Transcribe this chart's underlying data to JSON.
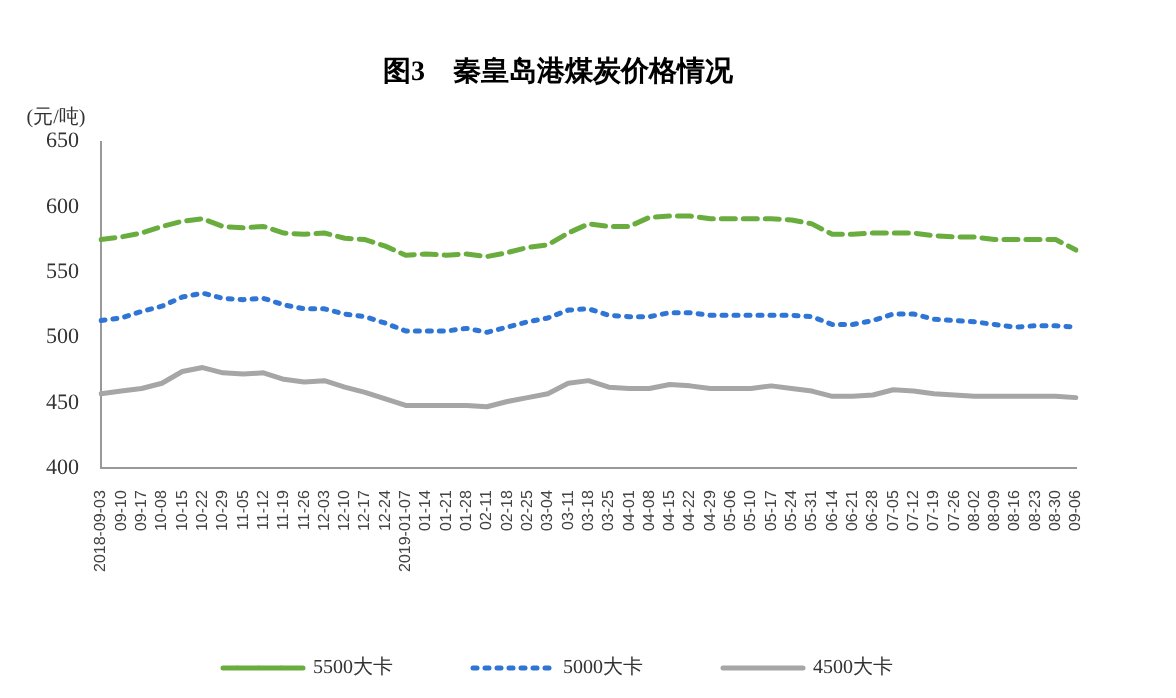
{
  "chart_data": {
    "type": "line",
    "title": "图3　秦皇岛港煤炭价格情况",
    "ylabel": "(元/吨)",
    "categories": [
      "2018-09-03",
      "09-10",
      "09-17",
      "10-08",
      "10-15",
      "10-22",
      "10-29",
      "11-05",
      "11-12",
      "11-19",
      "11-26",
      "12-03",
      "12-10",
      "12-17",
      "12-24",
      "2019-01-07",
      "01-14",
      "01-21",
      "01-28",
      "02-11",
      "02-18",
      "02-25",
      "03-04",
      "03-11",
      "03-18",
      "03-25",
      "04-01",
      "04-08",
      "04-15",
      "04-22",
      "04-29",
      "05-06",
      "05-10",
      "05-17",
      "05-24",
      "05-31",
      "06-14",
      "06-21",
      "06-28",
      "07-05",
      "07-12",
      "07-19",
      "07-26",
      "08-02",
      "08-09",
      "08-16",
      "08-23",
      "08-30",
      "09-06"
    ],
    "series": [
      {
        "name": "5500大卡",
        "color": "#6aad3f",
        "line_style": "dashed",
        "values": [
          575,
          577,
          580,
          585,
          589,
          591,
          585,
          584,
          585,
          580,
          579,
          580,
          576,
          575,
          570,
          563,
          564,
          563,
          564,
          562,
          565,
          569,
          571,
          580,
          587,
          585,
          585,
          592,
          593,
          593,
          591,
          591,
          591,
          591,
          590,
          587,
          579,
          579,
          580,
          580,
          580,
          578,
          577,
          577,
          575,
          575,
          575,
          575,
          567
        ]
      },
      {
        "name": "5000大卡",
        "color": "#2e75d6",
        "line_style": "dotted",
        "values": [
          513,
          515,
          520,
          524,
          531,
          534,
          530,
          529,
          530,
          525,
          522,
          522,
          518,
          516,
          511,
          505,
          505,
          505,
          507,
          504,
          508,
          512,
          515,
          521,
          522,
          517,
          516,
          516,
          519,
          519,
          517,
          517,
          517,
          517,
          517,
          516,
          510,
          510,
          513,
          518,
          518,
          514,
          513,
          512,
          510,
          508,
          509,
          509,
          508
        ]
      },
      {
        "name": "4500大卡",
        "color": "#a6a6a6",
        "line_style": "solid",
        "values": [
          457,
          459,
          461,
          465,
          474,
          477,
          473,
          472,
          473,
          468,
          466,
          467,
          462,
          458,
          453,
          448,
          448,
          448,
          448,
          447,
          451,
          454,
          457,
          465,
          467,
          462,
          461,
          461,
          464,
          463,
          461,
          461,
          461,
          463,
          461,
          459,
          455,
          455,
          456,
          460,
          459,
          457,
          456,
          455,
          455,
          455,
          455,
          455,
          454
        ]
      }
    ],
    "ylim": [
      400,
      650
    ],
    "yticks": [
      400,
      450,
      500,
      550,
      600,
      650
    ],
    "grid": false,
    "legend": "bottom",
    "marker": "none"
  }
}
